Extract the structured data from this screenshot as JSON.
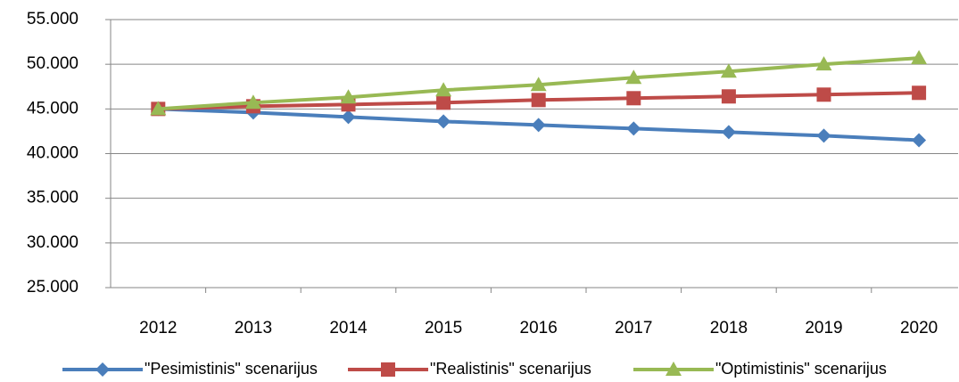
{
  "chart_data": {
    "type": "line",
    "categories": [
      "2012",
      "2013",
      "2014",
      "2015",
      "2016",
      "2017",
      "2018",
      "2019",
      "2020"
    ],
    "series": [
      {
        "name": "\"Pesimistinis\" scenarijus",
        "color": "#4a7ebb",
        "marker": "diamond",
        "values": [
          45000,
          44600,
          44100,
          43600,
          43200,
          42800,
          42400,
          42000,
          41500
        ]
      },
      {
        "name": "\"Realistinis\" scenarijus",
        "color": "#be4b48",
        "marker": "square",
        "values": [
          45000,
          45300,
          45500,
          45700,
          46000,
          46200,
          46400,
          46600,
          46800
        ]
      },
      {
        "name": "\"Optimistinis\" scenarijus",
        "color": "#98b954",
        "marker": "triangle",
        "values": [
          45000,
          45700,
          46300,
          47100,
          47700,
          48500,
          49200,
          50000,
          50700
        ]
      }
    ],
    "ylim": [
      25000,
      55000
    ],
    "yticks": [
      {
        "value": 25000,
        "label": "25.000"
      },
      {
        "value": 30000,
        "label": "30.000"
      },
      {
        "value": 35000,
        "label": "35.000"
      },
      {
        "value": 40000,
        "label": "40.000"
      },
      {
        "value": 45000,
        "label": "45.000"
      },
      {
        "value": 50000,
        "label": "50.000"
      },
      {
        "value": 55000,
        "label": "55.000"
      }
    ],
    "grid": true,
    "legend": "bottom"
  }
}
